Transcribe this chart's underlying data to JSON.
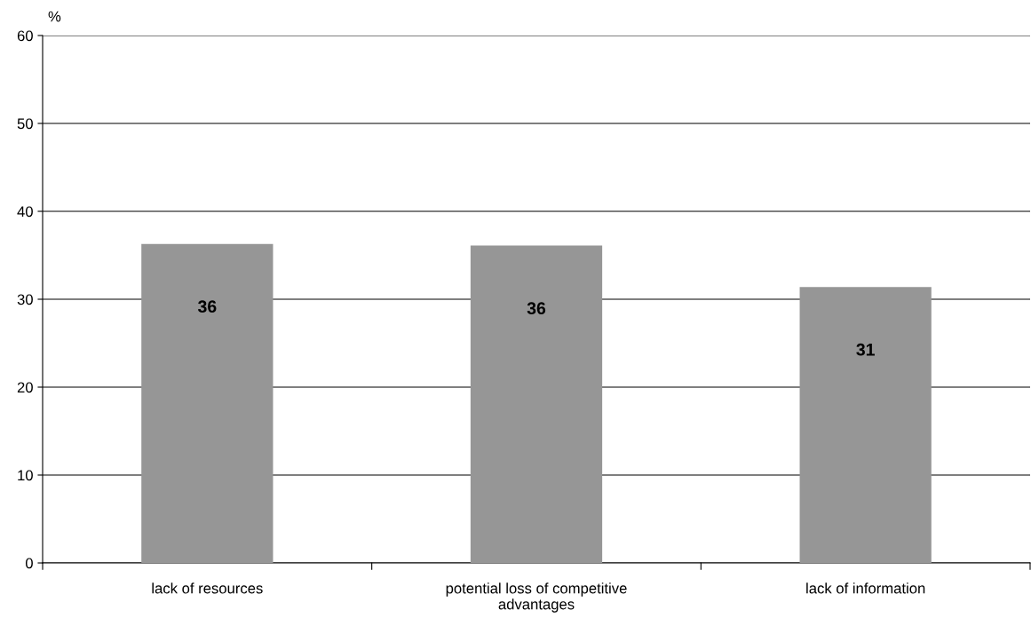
{
  "chart_data": {
    "type": "bar",
    "ylabel": "%",
    "categories": [
      "lack of resources",
      "potential loss of competitive advantages",
      "lack of information"
    ],
    "values": [
      36.3,
      36.1,
      31.4
    ],
    "value_labels": [
      "36",
      "36",
      "31"
    ],
    "color": "#969696",
    "ylim": [
      0,
      60
    ],
    "yticks": [
      0,
      10,
      20,
      30,
      40,
      50,
      60
    ],
    "grid": "y"
  }
}
